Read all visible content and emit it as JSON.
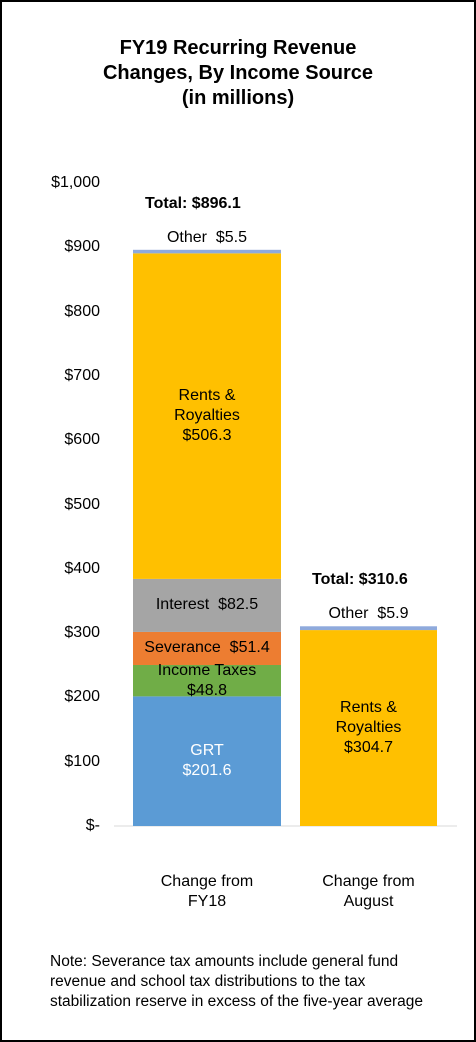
{
  "chart_data": {
    "type": "stacked_bar",
    "title": "FY19 Recurring Revenue Changes, By Income Source",
    "subtitle": "(in millions)",
    "categories": [
      "Change from FY18",
      "Change from August"
    ],
    "series": [
      {
        "name": "GRT",
        "color": "#5b9bd5",
        "values": [
          201.6,
          null
        ],
        "value_labels": [
          "$201.6",
          null
        ]
      },
      {
        "name": "Income Taxes",
        "color": "#70ad47",
        "values": [
          48.8,
          null
        ],
        "value_labels": [
          "$48.8",
          null
        ]
      },
      {
        "name": "Severance",
        "color": "#ed7d31",
        "values": [
          51.4,
          null
        ],
        "value_labels": [
          "$51.4",
          null
        ]
      },
      {
        "name": "Interest",
        "color": "#a5a5a5",
        "values": [
          82.5,
          null
        ],
        "value_labels": [
          "$82.5",
          null
        ]
      },
      {
        "name": "Rents & Royalties",
        "color": "#ffc000",
        "values": [
          506.3,
          304.7
        ],
        "value_labels": [
          "$506.3",
          "$304.7"
        ]
      },
      {
        "name": "Other",
        "color": "#8faadc",
        "values": [
          5.5,
          5.9
        ],
        "value_labels": [
          "$5.5",
          "$5.9"
        ]
      }
    ],
    "totals": [
      896.1,
      310.6
    ],
    "total_labels": [
      "Total: $896.1",
      "Total: $310.6"
    ],
    "ylim": [
      0,
      1000
    ],
    "yticks": [
      {
        "value": 0,
        "label": "$-"
      },
      {
        "value": 100,
        "label": "$100"
      },
      {
        "value": 200,
        "label": "$200"
      },
      {
        "value": 300,
        "label": "$300"
      },
      {
        "value": 400,
        "label": "$400"
      },
      {
        "value": 500,
        "label": "$500"
      },
      {
        "value": 600,
        "label": "$600"
      },
      {
        "value": 700,
        "label": "$700"
      },
      {
        "value": 800,
        "label": "$800"
      },
      {
        "value": 900,
        "label": "$900"
      },
      {
        "value": 1000,
        "label": "$1,000"
      }
    ],
    "note": "Note: Severance tax amounts include general fund revenue and school tax distributions to the tax stabilization reserve in excess of the five-year average"
  }
}
